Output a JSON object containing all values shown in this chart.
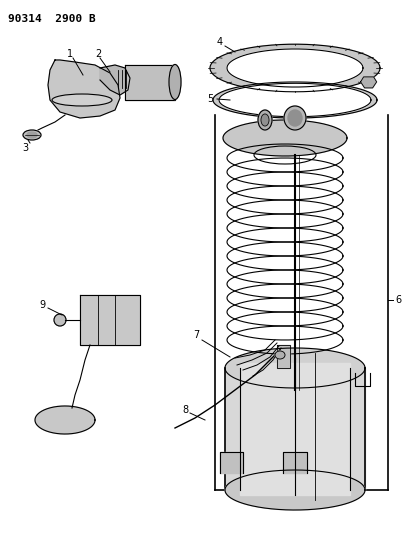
{
  "title": "90314  2900 B",
  "title_fontsize": 8,
  "title_fontweight": "bold",
  "bg_color": "#ffffff",
  "line_color": "#000000",
  "fig_width": 4.05,
  "fig_height": 5.33,
  "dpi": 100
}
